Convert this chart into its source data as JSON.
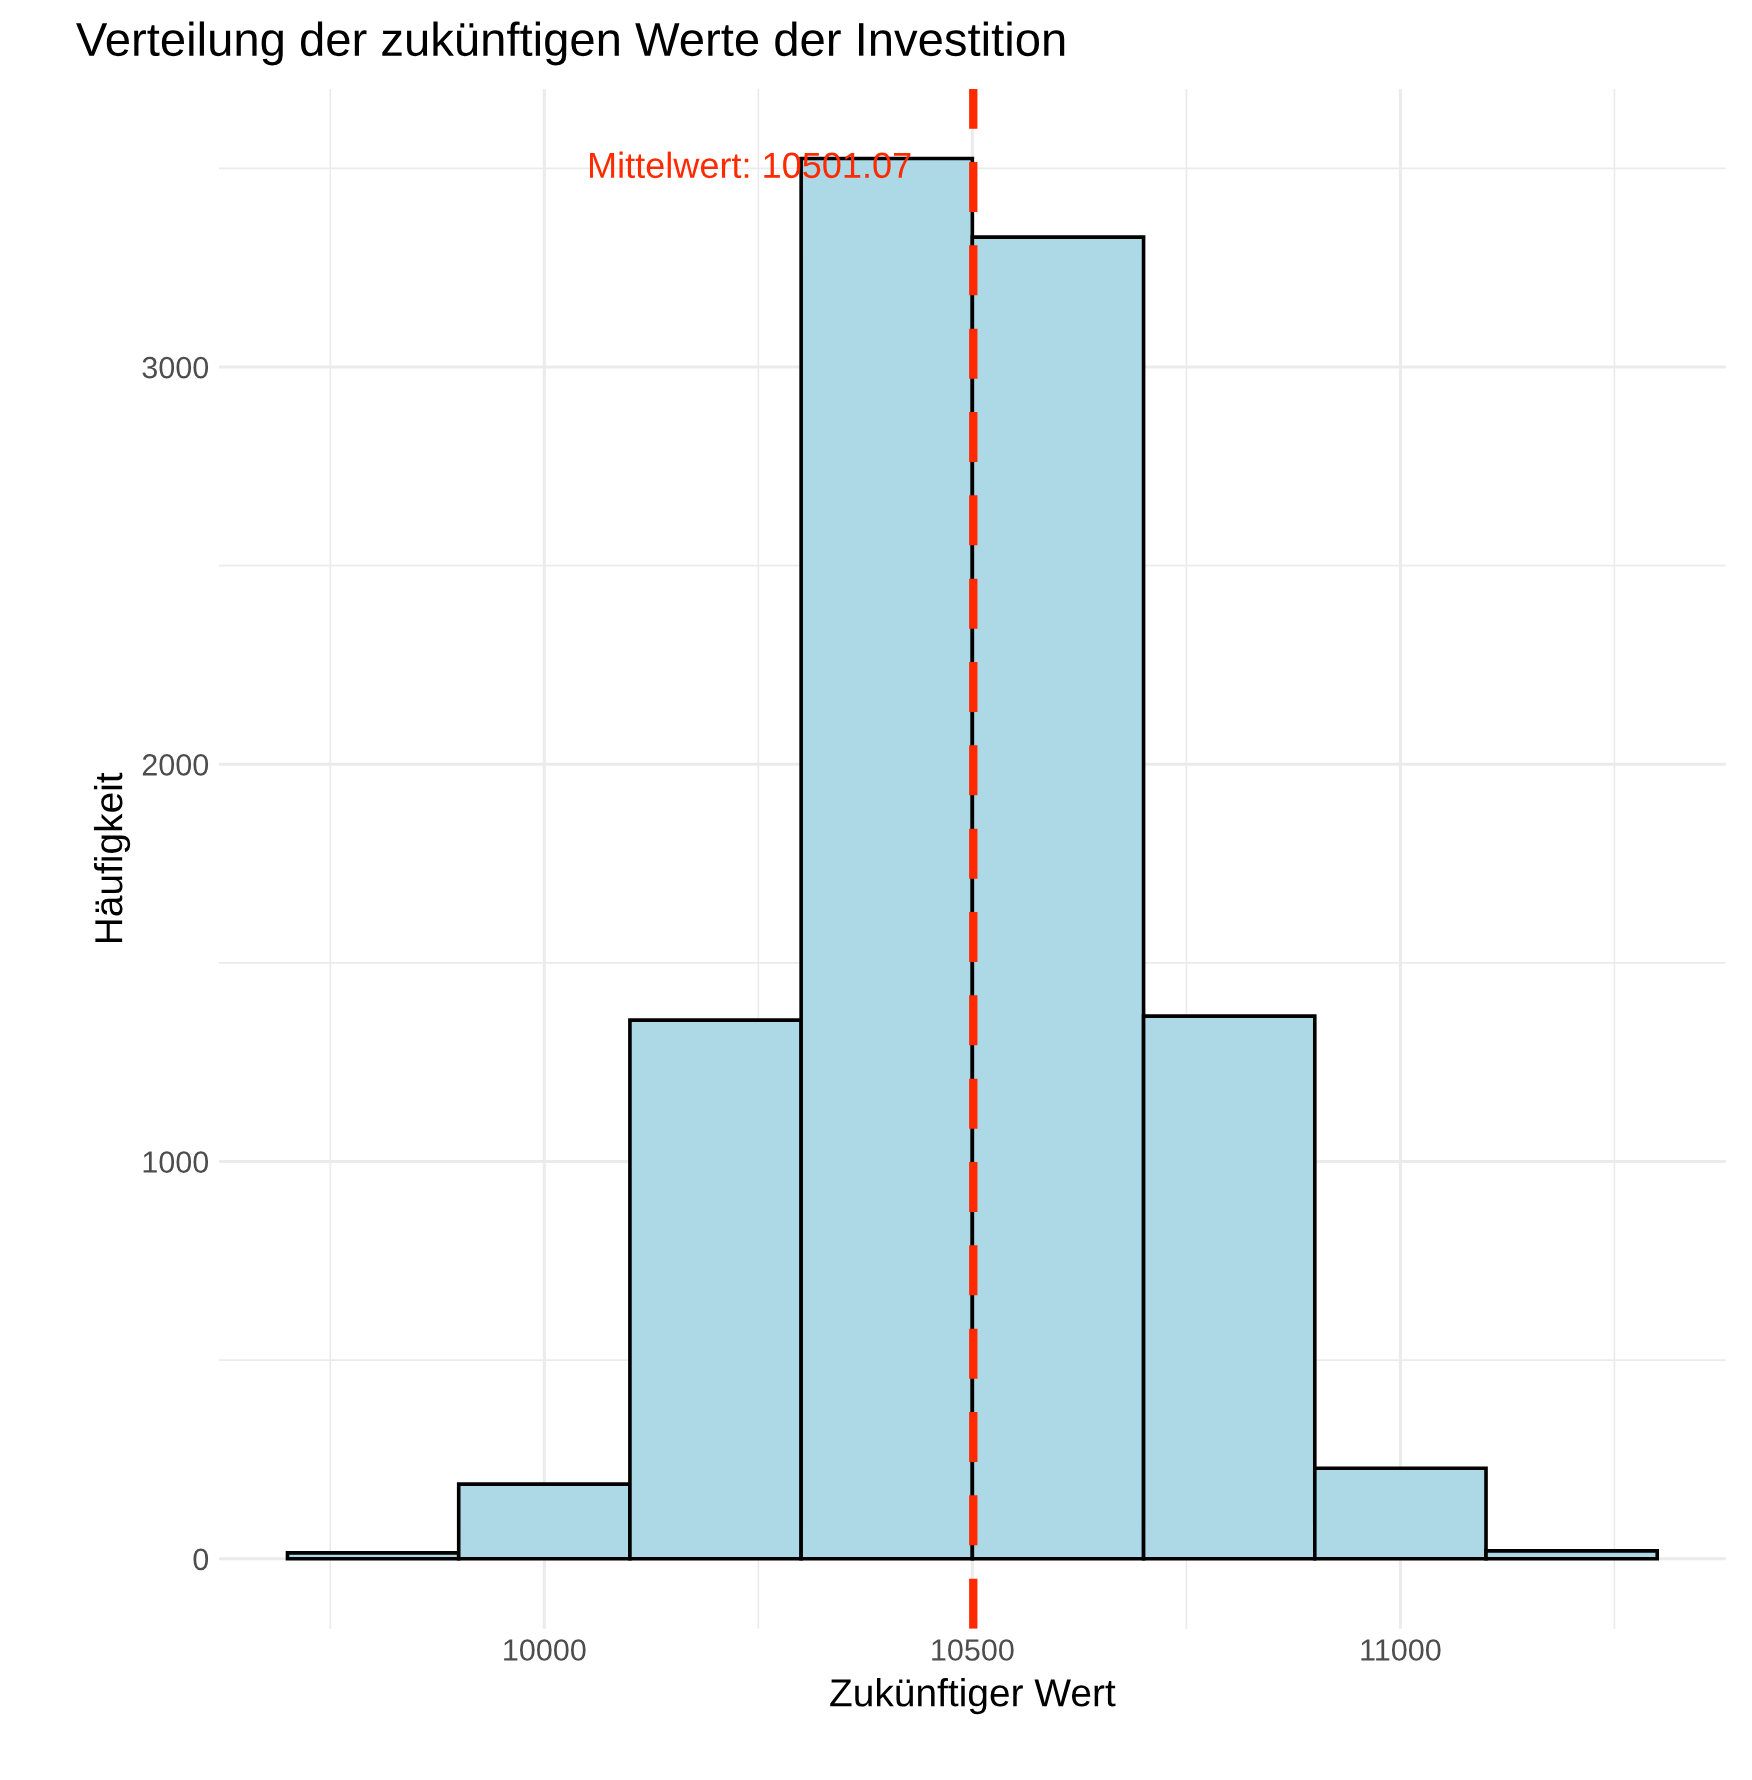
{
  "chart_data": {
    "type": "histogram",
    "title": "Verteilung der zukünftigen Werte der Investition",
    "xlabel": "Zukünftiger Wert",
    "ylabel": "Häufigkeit",
    "bins": [
      9700,
      9900,
      10100,
      10300,
      10500,
      10700,
      10900,
      11100,
      11300
    ],
    "values": [
      15,
      188,
      1356,
      3525,
      3327,
      1366,
      228,
      20
    ],
    "color": "#add8e6",
    "xlim": [
      9620,
      11380
    ],
    "ylim": [
      -176,
      3700
    ],
    "xticks": [
      10000,
      10500,
      11000
    ],
    "yticks": [
      0,
      1000,
      2000,
      3000
    ],
    "grid": true,
    "ref_lines": [
      {
        "axis": "x",
        "value": 10501.07,
        "color": "#ff2a00",
        "line_style": "dashed"
      }
    ],
    "annotations": [
      {
        "text": "Mittelwert: 10501.07",
        "x": 10501.07,
        "y": 3500
      }
    ]
  }
}
